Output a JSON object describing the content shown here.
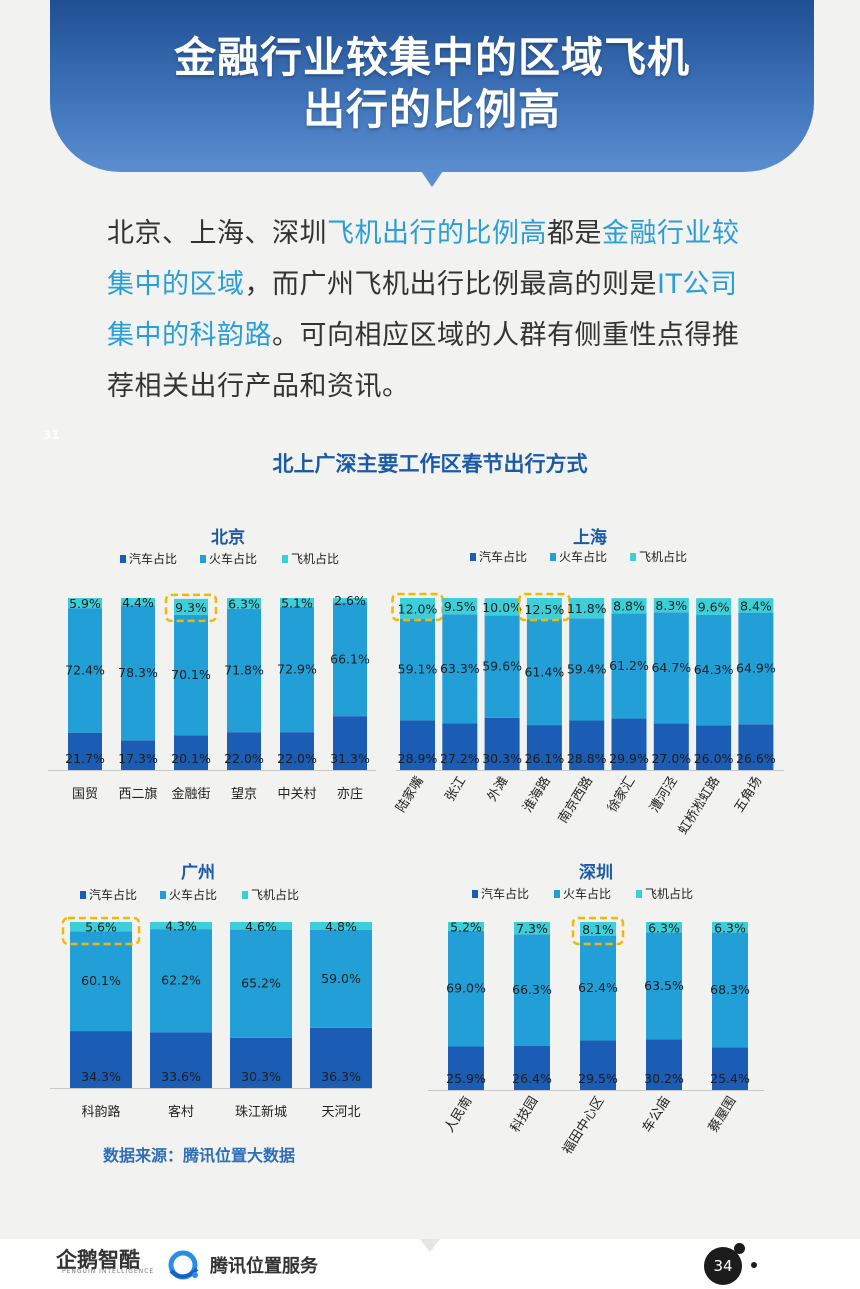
{
  "banner": {
    "title_line1": "金融行业较集中的区域飞机",
    "title_line2": "出行的比例高"
  },
  "intro": {
    "s1": "北京、上海、深圳",
    "s2": "飞机出行的比例高",
    "s3": "都是",
    "s4": "金融行业较集中的区域",
    "s5": "，而广州飞机出行比例最高的则是",
    "s6": "IT公司集中的科韵路",
    "s7": "。可向相应区域的人群有侧重性点得推荐相关出行产品和资讯。"
  },
  "page_ref": "31",
  "chart_title": "北上广深主要工作区春节出行方式",
  "source_note": "数据来源：腾讯位置大数据",
  "footer": {
    "logo1_text": "企鹅智酷",
    "logo1_sub": "PENGUIN INTELLIGENCE",
    "logo2_text": "腾讯位置服务",
    "page_number": "34"
  },
  "colors": {
    "car": "#1b5cb4",
    "train": "#239fd7",
    "plane": "#3ccfd9",
    "highlight_box": "#f5b800",
    "panel_title": "#1a5aa6"
  },
  "chart_data": [
    {
      "type": "bar",
      "stacked": true,
      "title": "北京",
      "legend": [
        "汽车占比",
        "火车占比",
        "飞机占比"
      ],
      "categories": [
        "国贸",
        "西二旗",
        "金融街",
        "望京",
        "中关村",
        "亦庄"
      ],
      "series": [
        {
          "name": "汽车占比",
          "values": [
            21.7,
            17.3,
            20.1,
            22.0,
            22.0,
            31.3
          ]
        },
        {
          "name": "火车占比",
          "values": [
            72.4,
            78.3,
            70.1,
            71.8,
            72.9,
            66.1
          ]
        },
        {
          "name": "飞机占比",
          "values": [
            5.9,
            4.4,
            9.3,
            6.3,
            5.1,
            2.6
          ]
        }
      ],
      "labels": {
        "car": [
          "21.7%",
          "17.3%",
          "20.1%",
          "22.0%",
          "22.0%",
          "31.3%"
        ],
        "train": [
          "72.4%",
          "78.3%",
          "70.1%",
          "71.8%",
          "72.9%",
          "66.1%"
        ],
        "plane": [
          "5.9%",
          "4.4%",
          "9.3%",
          "6.3%",
          "5.1%",
          "2.6%"
        ]
      },
      "highlighted_category": "金融街",
      "ylim": [
        0,
        100
      ]
    },
    {
      "type": "bar",
      "stacked": true,
      "title": "上海",
      "legend": [
        "汽车占比",
        "火车占比",
        "飞机占比"
      ],
      "categories": [
        "陆家嘴",
        "张江",
        "外滩",
        "淮海路",
        "南京西路",
        "徐家汇",
        "漕河泾",
        "虹桥凇虹路",
        "五角场"
      ],
      "series": [
        {
          "name": "汽车占比",
          "values": [
            28.9,
            27.2,
            30.3,
            26.1,
            28.8,
            29.9,
            27.0,
            26.0,
            26.6
          ]
        },
        {
          "name": "火车占比",
          "values": [
            59.1,
            63.3,
            59.6,
            61.4,
            59.4,
            61.2,
            64.7,
            64.3,
            64.9
          ]
        },
        {
          "name": "飞机占比",
          "values": [
            12.0,
            9.5,
            10.0,
            12.5,
            11.8,
            8.8,
            8.3,
            9.6,
            8.4
          ]
        }
      ],
      "labels": {
        "car": [
          "28.9%",
          "27.2%",
          "30.3%",
          "26.1%",
          "28.8%",
          "29.9%",
          "27.0%",
          "26.0%",
          "26.6%"
        ],
        "train": [
          "59.1%",
          "63.3%",
          "59.6%",
          "61.4%",
          "59.4%",
          "61.2%",
          "64.7%",
          "64.3%",
          "64.9%"
        ],
        "plane": [
          "12.0%",
          "9.5%",
          "10.0%",
          "12.5%",
          "11.8%",
          "8.8%",
          "8.3%",
          "9.6%",
          "8.4%"
        ]
      },
      "highlighted_categories": [
        "陆家嘴",
        "淮海路"
      ],
      "ylim": [
        0,
        100
      ]
    },
    {
      "type": "bar",
      "stacked": true,
      "title": "广州",
      "legend": [
        "汽车占比",
        "火车占比",
        "飞机占比"
      ],
      "categories": [
        "科韵路",
        "客村",
        "珠江新城",
        "天河北"
      ],
      "series": [
        {
          "name": "汽车占比",
          "values": [
            34.3,
            33.6,
            30.3,
            36.3
          ]
        },
        {
          "name": "火车占比",
          "values": [
            60.1,
            62.2,
            65.2,
            59.0
          ]
        },
        {
          "name": "飞机占比",
          "values": [
            5.6,
            4.3,
            4.6,
            4.8
          ]
        }
      ],
      "labels": {
        "car": [
          "34.3%",
          "33.6%",
          "30.3%",
          "36.3%"
        ],
        "train": [
          "60.1%",
          "62.2%",
          "65.2%",
          "59.0%"
        ],
        "plane": [
          "5.6%",
          "4.3%",
          "4.6%",
          "4.8%"
        ]
      },
      "highlighted_category": "科韵路",
      "ylim": [
        0,
        100
      ]
    },
    {
      "type": "bar",
      "stacked": true,
      "title": "深圳",
      "legend": [
        "汽车占比",
        "火车占比",
        "飞机占比"
      ],
      "categories": [
        "人民南",
        "科技园",
        "福田中心区",
        "车公庙",
        "蔡屋围"
      ],
      "series": [
        {
          "name": "汽车占比",
          "values": [
            25.9,
            26.4,
            29.5,
            30.2,
            25.4
          ]
        },
        {
          "name": "火车占比",
          "values": [
            69.0,
            66.3,
            62.4,
            63.5,
            68.3
          ]
        },
        {
          "name": "飞机占比",
          "values": [
            5.2,
            7.3,
            8.1,
            6.3,
            6.3
          ]
        }
      ],
      "labels": {
        "car": [
          "25.9%",
          "26.4%",
          "29.5%",
          "30.2%",
          "25.4%"
        ],
        "train": [
          "69.0%",
          "66.3%",
          "62.4%",
          "63.5%",
          "68.3%"
        ],
        "plane": [
          "5.2%",
          "7.3%",
          "8.1%",
          "6.3%",
          "6.3%"
        ]
      },
      "highlighted_category": "福田中心区",
      "ylim": [
        0,
        100
      ]
    }
  ]
}
